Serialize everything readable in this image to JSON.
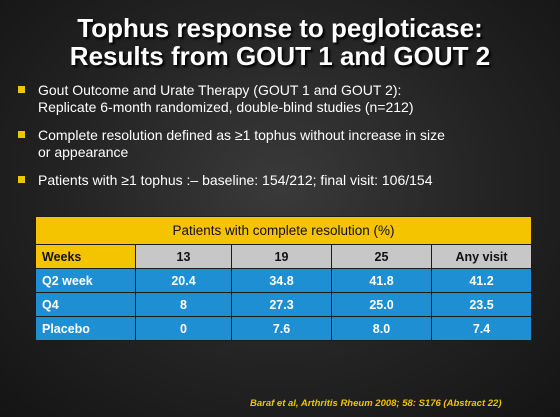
{
  "title": {
    "line1": "Tophus response to pegloticase:",
    "line2": "Results from GOUT 1 and GOUT 2"
  },
  "bullets": [
    {
      "line1": "Gout Outcome and Urate Therapy (GOUT 1 and GOUT 2):",
      "line2": "Replicate 6-month randomized, double-blind studies (n=212)"
    },
    {
      "line1": "Complete resolution defined as ≥1 tophus without increase in size",
      "line2": "or appearance"
    },
    {
      "line1": "Patients with ≥1 tophus :– baseline: 154/212; final visit: 106/154",
      "line2": ""
    }
  ],
  "table": {
    "caption": "Patients with complete resolution (%)",
    "columns": [
      "Weeks",
      "13",
      "19",
      "25",
      "Any visit"
    ],
    "rows": [
      [
        "Q2 week",
        "20.4",
        "34.8",
        "41.8",
        "41.2"
      ],
      [
        "Q4",
        "8",
        "27.3",
        "25.0",
        "23.5"
      ],
      [
        "Placebo",
        "0",
        "7.6",
        "8.0",
        "7.4"
      ]
    ]
  },
  "citation": "Baraf et al, Arthritis Rheum 2008; 58: S176 (Abstract 22)",
  "colors": {
    "accent_yellow": "#f5c400",
    "table_blue": "#1f8fd4",
    "header_gray": "#c7c7c7"
  }
}
